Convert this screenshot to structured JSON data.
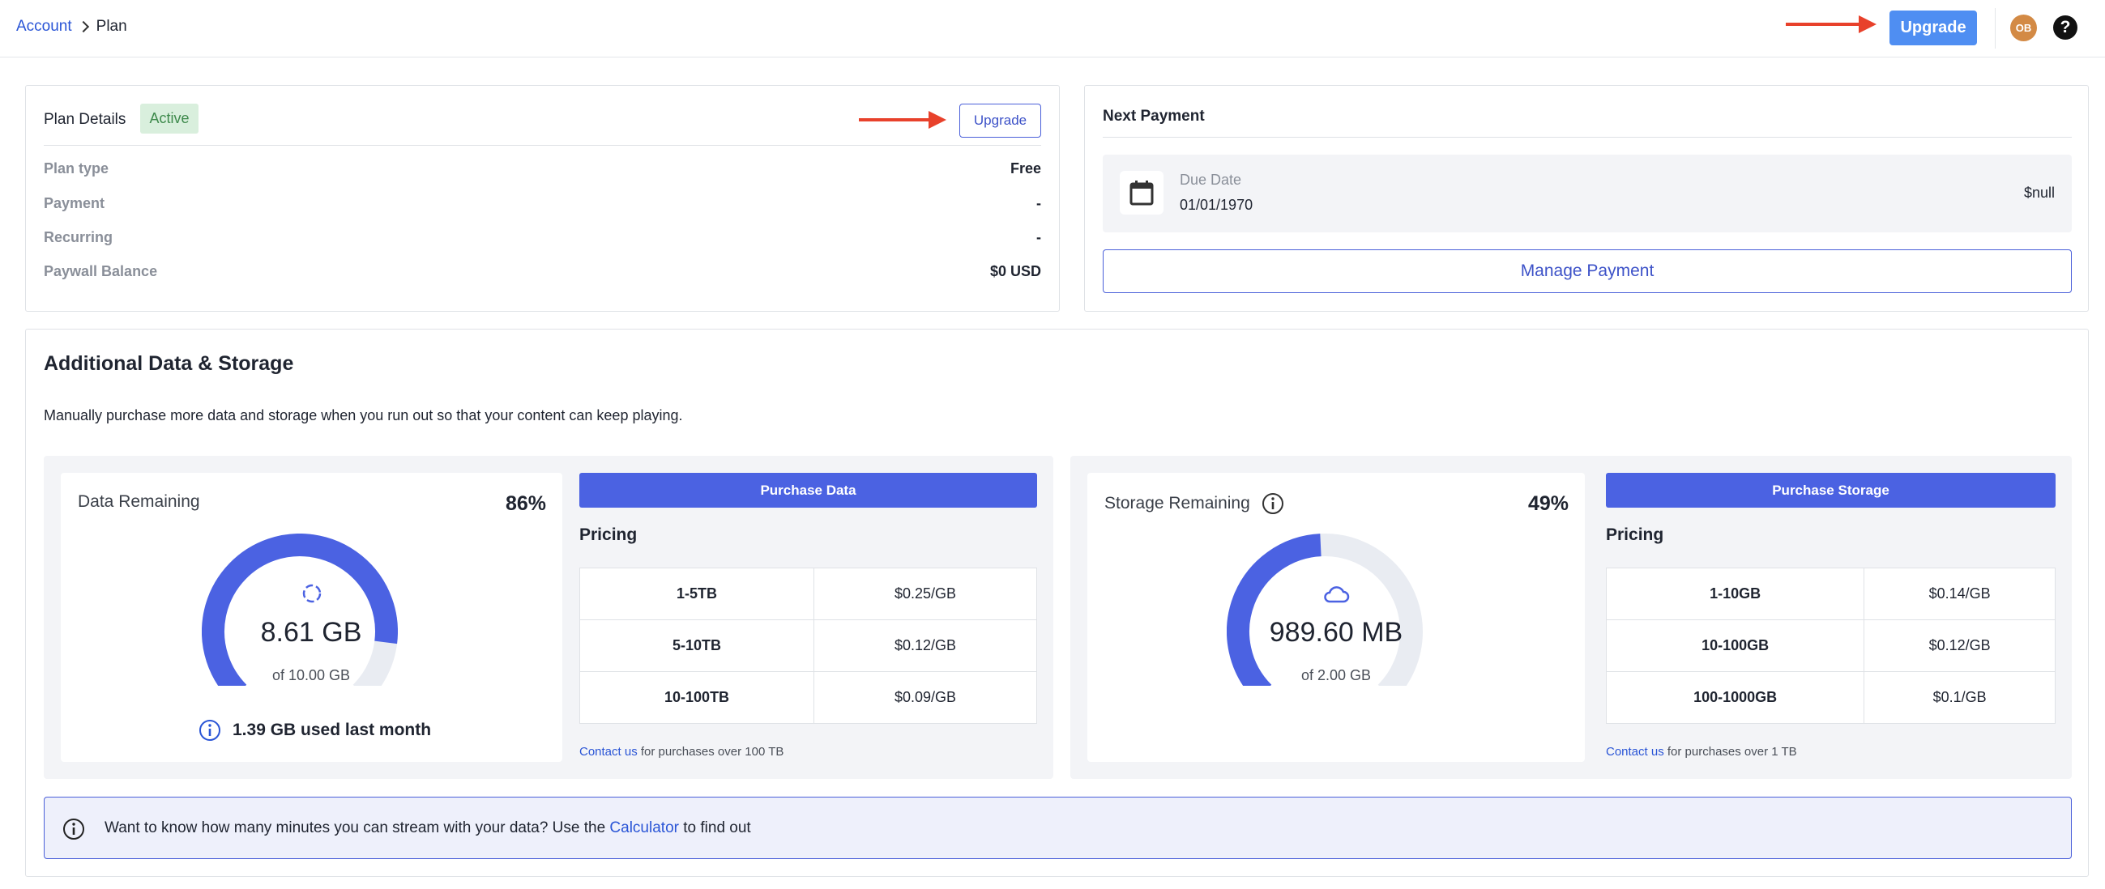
{
  "breadcrumb": {
    "parent": "Account",
    "current": "Plan"
  },
  "header": {
    "upgrade_label": "Upgrade",
    "avatar_initials": "OB",
    "help_label": "?"
  },
  "plan": {
    "title": "Plan Details",
    "status": "Active",
    "upgrade_label": "Upgrade",
    "rows": [
      {
        "label": "Plan type",
        "value": "Free"
      },
      {
        "label": "Payment",
        "value": "-"
      },
      {
        "label": "Recurring",
        "value": "-"
      },
      {
        "label": "Paywall Balance",
        "value": "$0 USD"
      }
    ]
  },
  "payment": {
    "title": "Next Payment",
    "due_label": "Due Date",
    "due_date": "01/01/1970",
    "amount": "$null",
    "manage_label": "Manage Payment"
  },
  "additional": {
    "title": "Additional Data & Storage",
    "description": "Manually purchase more data and storage when you run out so that your content can keep playing."
  },
  "data_panel": {
    "title": "Data Remaining",
    "percent_label": "86%",
    "percent": 86,
    "value": "8.61 GB",
    "of": "of 10.00 GB",
    "used_last_month": "1.39 GB used last month",
    "purchase_label": "Purchase Data",
    "pricing_title": "Pricing",
    "pricing": [
      {
        "tier": "1-5TB",
        "price": "$0.25/GB"
      },
      {
        "tier": "5-10TB",
        "price": "$0.12/GB"
      },
      {
        "tier": "10-100TB",
        "price": "$0.09/GB"
      }
    ],
    "contact_link": "Contact us",
    "contact_text": " for purchases over 100 TB"
  },
  "storage_panel": {
    "title": "Storage Remaining",
    "percent_label": "49%",
    "percent": 49,
    "value": "989.60 MB",
    "of": "of 2.00 GB",
    "purchase_label": "Purchase Storage",
    "pricing_title": "Pricing",
    "pricing": [
      {
        "tier": "1-10GB",
        "price": "$0.14/GB"
      },
      {
        "tier": "10-100GB",
        "price": "$0.12/GB"
      },
      {
        "tier": "100-1000GB",
        "price": "$0.1/GB"
      }
    ],
    "contact_link": "Contact us",
    "contact_text": " for purchases over 1 TB"
  },
  "info_bar": {
    "text_before": "Want to know how many minutes you can stream with your data? Use the ",
    "link": "Calculator",
    "text_after": " to find out"
  },
  "colors": {
    "accent": "#4b62e2",
    "arrow": "#e8412b",
    "gauge_track": "#e9ecf2"
  }
}
